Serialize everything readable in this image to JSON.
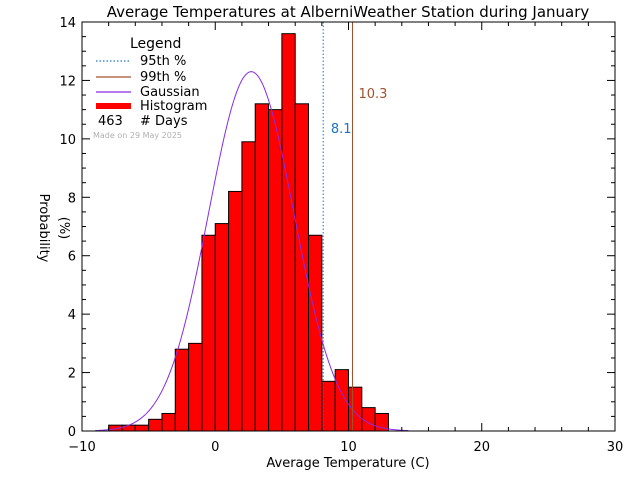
{
  "chart_data": {
    "type": "bar",
    "title": "Average Temperatures at AlberniWeather Station during January",
    "xlabel": "Average Temperature (C)",
    "ylabel_line1": "Probability",
    "ylabel_line2": "(%)",
    "xlim": [
      -10,
      30
    ],
    "ylim": [
      0,
      14
    ],
    "xticks": [
      -10,
      0,
      10,
      20,
      30
    ],
    "yticks": [
      0,
      2,
      4,
      6,
      8,
      10,
      12,
      14
    ],
    "bin_width": 1,
    "bins": [
      {
        "x0": -8,
        "value": 0.2
      },
      {
        "x0": -7,
        "value": 0.2
      },
      {
        "x0": -6,
        "value": 0.2
      },
      {
        "x0": -5,
        "value": 0.4
      },
      {
        "x0": -4,
        "value": 0.6
      },
      {
        "x0": -3,
        "value": 2.8
      },
      {
        "x0": -2,
        "value": 3.0
      },
      {
        "x0": -1,
        "value": 6.7
      },
      {
        "x0": 0,
        "value": 7.1
      },
      {
        "x0": 1,
        "value": 8.2
      },
      {
        "x0": 2,
        "value": 9.9
      },
      {
        "x0": 3,
        "value": 11.2
      },
      {
        "x0": 4,
        "value": 11.0
      },
      {
        "x0": 5,
        "value": 13.6
      },
      {
        "x0": 6,
        "value": 11.2
      },
      {
        "x0": 7,
        "value": 6.7
      },
      {
        "x0": 8,
        "value": 1.7
      },
      {
        "x0": 9,
        "value": 2.1
      },
      {
        "x0": 10,
        "value": 1.5
      },
      {
        "x0": 11,
        "value": 0.8
      },
      {
        "x0": 12,
        "value": 0.6
      }
    ],
    "gaussian": {
      "mean": 2.7,
      "sigma": 3.2,
      "peak": 12.3
    },
    "percentiles": [
      {
        "name": "95th %",
        "value": 8.1,
        "label": "8.1",
        "color": "#1a73c9",
        "style": "dotted"
      },
      {
        "name": "99th %",
        "value": 10.3,
        "label": "10.3",
        "color": "#a0522d",
        "style": "solid"
      }
    ],
    "legend": {
      "title": "Legend",
      "position": "top-left",
      "items": [
        {
          "label": "95th %",
          "color": "#1a73c9",
          "style": "dotted"
        },
        {
          "label": "99th %",
          "color": "#a0522d",
          "style": "solid"
        },
        {
          "label": "Gaussian",
          "color": "#8a2be2",
          "style": "solid"
        },
        {
          "label": "Histogram",
          "color": "#ff0000",
          "style": "thick"
        }
      ],
      "days_count": "463",
      "days_label": "# Days",
      "made_on": "Made on 29 May 2025"
    },
    "colors": {
      "histogram_fill": "#ff0000",
      "histogram_edge": "#000000",
      "gaussian": "#8a2be2",
      "axes": "#000000"
    }
  }
}
